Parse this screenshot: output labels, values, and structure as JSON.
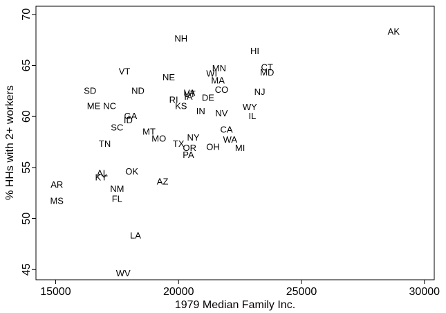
{
  "chart_data": {
    "type": "scatter",
    "xlabel": "1979 Median Family Inc.",
    "ylabel": "% HHs with 2+ workers",
    "xlim": [
      14200,
      30400
    ],
    "ylim": [
      44.0,
      70.8
    ],
    "xticks": [
      15000,
      20000,
      25000,
      30000
    ],
    "yticks": [
      45,
      50,
      55,
      60,
      65,
      70
    ],
    "grid": false,
    "points": [
      {
        "label": "AK",
        "x": 28750,
        "y": 68.3
      },
      {
        "label": "NH",
        "x": 20100,
        "y": 67.6
      },
      {
        "label": "HI",
        "x": 23100,
        "y": 66.4
      },
      {
        "label": "MN",
        "x": 21650,
        "y": 64.7
      },
      {
        "label": "CT",
        "x": 23600,
        "y": 64.8
      },
      {
        "label": "VT",
        "x": 17800,
        "y": 64.4
      },
      {
        "label": "MD",
        "x": 23600,
        "y": 64.3
      },
      {
        "label": "WI",
        "x": 21350,
        "y": 64.2
      },
      {
        "label": "NE",
        "x": 19600,
        "y": 63.8
      },
      {
        "label": "MA",
        "x": 21600,
        "y": 63.5
      },
      {
        "label": "SD",
        "x": 16400,
        "y": 62.5
      },
      {
        "label": "ND",
        "x": 18350,
        "y": 62.5
      },
      {
        "label": "CO",
        "x": 21750,
        "y": 62.6
      },
      {
        "label": "NJ",
        "x": 23300,
        "y": 62.4
      },
      {
        "label": "VA",
        "x": 20450,
        "y": 62.3
      },
      {
        "label": "UT",
        "x": 20450,
        "y": 62.2
      },
      {
        "label": "IA",
        "x": 20400,
        "y": 61.9
      },
      {
        "label": "DE",
        "x": 21200,
        "y": 61.8
      },
      {
        "label": "RI",
        "x": 19800,
        "y": 61.6
      },
      {
        "label": "ME",
        "x": 16550,
        "y": 61.0
      },
      {
        "label": "NC",
        "x": 17200,
        "y": 61.0
      },
      {
        "label": "KS",
        "x": 20100,
        "y": 61.0
      },
      {
        "label": "WY",
        "x": 22900,
        "y": 60.9
      },
      {
        "label": "IN",
        "x": 20900,
        "y": 60.5
      },
      {
        "label": "NV",
        "x": 21750,
        "y": 60.3
      },
      {
        "label": "IL",
        "x": 23000,
        "y": 60.0
      },
      {
        "label": "GA",
        "x": 18050,
        "y": 60.0
      },
      {
        "label": "ID",
        "x": 17950,
        "y": 59.6
      },
      {
        "label": "SC",
        "x": 17500,
        "y": 58.9
      },
      {
        "label": "CA",
        "x": 21950,
        "y": 58.7
      },
      {
        "label": "MT",
        "x": 18800,
        "y": 58.5
      },
      {
        "label": "NY",
        "x": 20600,
        "y": 57.9
      },
      {
        "label": "MO",
        "x": 19200,
        "y": 57.8
      },
      {
        "label": "WA",
        "x": 22100,
        "y": 57.7
      },
      {
        "label": "TX",
        "x": 20000,
        "y": 57.3
      },
      {
        "label": "TN",
        "x": 17000,
        "y": 57.3
      },
      {
        "label": "OH",
        "x": 21400,
        "y": 57.0
      },
      {
        "label": "MI",
        "x": 22500,
        "y": 56.9
      },
      {
        "label": "OR",
        "x": 20450,
        "y": 56.9
      },
      {
        "label": "PA",
        "x": 20400,
        "y": 56.2
      },
      {
        "label": "OK",
        "x": 18100,
        "y": 54.6
      },
      {
        "label": "AL",
        "x": 16900,
        "y": 54.4
      },
      {
        "label": "KY",
        "x": 16850,
        "y": 54.0
      },
      {
        "label": "AZ",
        "x": 19350,
        "y": 53.6
      },
      {
        "label": "AR",
        "x": 15050,
        "y": 53.3
      },
      {
        "label": "NM",
        "x": 17500,
        "y": 52.9
      },
      {
        "label": "FL",
        "x": 17500,
        "y": 51.9
      },
      {
        "label": "MS",
        "x": 15050,
        "y": 51.7
      },
      {
        "label": "LA",
        "x": 18250,
        "y": 48.3
      },
      {
        "label": "WV",
        "x": 17750,
        "y": 44.6
      }
    ]
  }
}
